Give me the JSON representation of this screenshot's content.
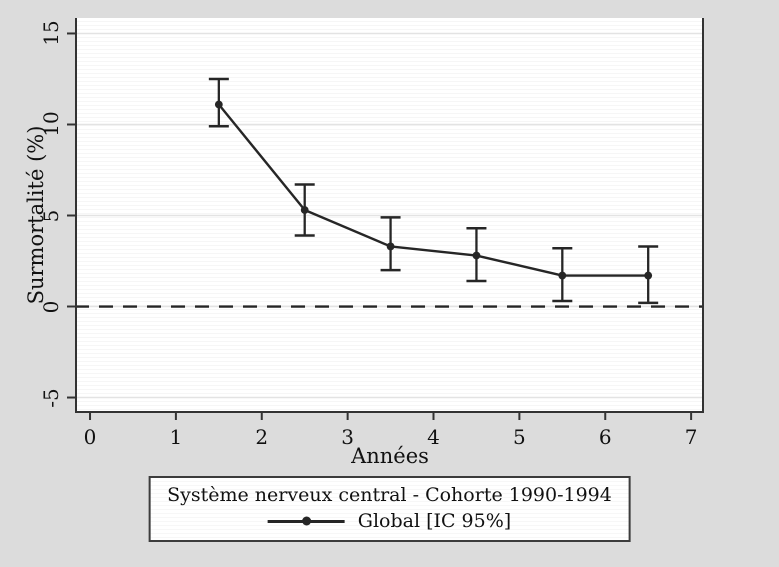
{
  "chart_data": {
    "type": "line",
    "title": "",
    "xlabel": "Années",
    "ylabel": "Surmortalité (%)",
    "xlim": [
      -0.175,
      7.15
    ],
    "ylim": [
      -5.85,
      15.85
    ],
    "xticks": [
      0,
      1,
      2,
      3,
      4,
      5,
      6,
      7
    ],
    "yticks": [
      -5,
      0,
      5,
      10,
      15
    ],
    "grid": "horizontal-major",
    "y_tick_labels_rotated": true,
    "reference_line": {
      "y": 0,
      "style": "dashed"
    },
    "series": [
      {
        "name": "Global [IC 95%]",
        "marker": "filled-circle",
        "x": [
          1.5,
          2.5,
          3.5,
          4.5,
          5.5,
          6.5
        ],
        "y": [
          11.1,
          5.3,
          3.3,
          2.8,
          1.7,
          1.7
        ],
        "ci_low": [
          9.9,
          3.9,
          2.0,
          1.4,
          0.3,
          0.2
        ],
        "ci_high": [
          12.5,
          6.7,
          4.9,
          4.3,
          3.2,
          3.3
        ]
      }
    ],
    "legend": {
      "position": "bottom",
      "title": "Système nerveux central - Cohorte 1990-1994",
      "entry": "Global [IC 95%]"
    },
    "colors": {
      "background": "#dcdcdc",
      "plot_background": "#ffffff",
      "gridline": "#e3e3e3",
      "axis": "#333333",
      "line": "#262626",
      "text": "#111111"
    }
  }
}
